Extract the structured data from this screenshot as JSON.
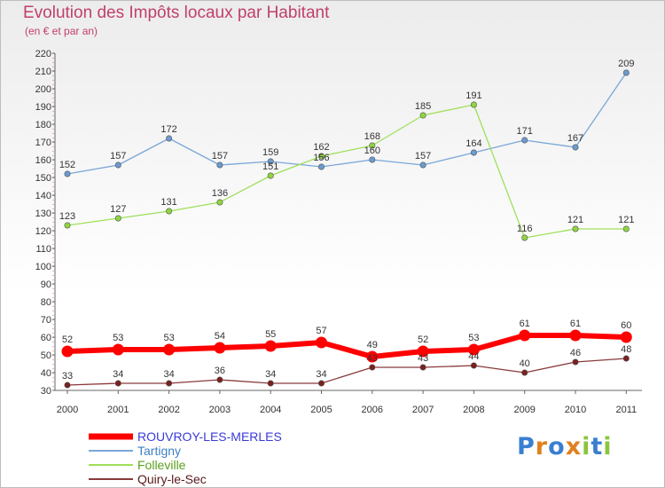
{
  "chart_data": {
    "type": "line",
    "title": "Evolution des Impôts locaux par Habitant",
    "subtitle": "(en € et par an)",
    "xlabel": "",
    "ylabel": "",
    "x": [
      "2000",
      "2001",
      "2002",
      "2003",
      "2004",
      "2005",
      "2006",
      "2007",
      "2008",
      "2009",
      "2010",
      "2011"
    ],
    "ylim": [
      30,
      220
    ],
    "yticks": [
      30,
      40,
      50,
      60,
      70,
      80,
      90,
      100,
      110,
      120,
      130,
      140,
      150,
      160,
      170,
      180,
      190,
      200,
      210,
      220
    ],
    "grid": false,
    "legend_position": "bottom-left",
    "series": [
      {
        "name": "ROUVROY-LES-MERLES",
        "values": [
          52,
          53,
          53,
          54,
          55,
          57,
          49,
          52,
          53,
          61,
          61,
          60
        ],
        "color": "#ff0000",
        "line_color": "#ff0000",
        "label_color": "#3a3ad8",
        "width": 6
      },
      {
        "name": "Tartigny",
        "values": [
          152,
          157,
          172,
          157,
          159,
          156,
          160,
          157,
          164,
          171,
          167,
          209
        ],
        "color": "#6b9bd1",
        "line_color": "#7aa7d8",
        "label_color": "#3f7fc4",
        "width": 1.3
      },
      {
        "name": "Folleville",
        "values": [
          123,
          127,
          131,
          136,
          151,
          162,
          168,
          185,
          191,
          116,
          121,
          121
        ],
        "color": "#8fd63f",
        "line_color": "#9ee05a",
        "label_color": "#5aa01e",
        "width": 1.3
      },
      {
        "name": "Quiry-le-Sec",
        "values": [
          33,
          34,
          34,
          36,
          34,
          34,
          43,
          43,
          44,
          40,
          46,
          48
        ],
        "color": "#7a2020",
        "line_color": "#8a3a3a",
        "label_color": "#5a1a1a",
        "width": 1.3
      }
    ]
  },
  "logo": {
    "text": "Proxiti",
    "letter_colors": [
      "#3a7fd0",
      "#e2801f",
      "#3a7fd0",
      "#e2801f",
      "#8ac53e",
      "#3a7fd0",
      "#8ac53e"
    ]
  }
}
